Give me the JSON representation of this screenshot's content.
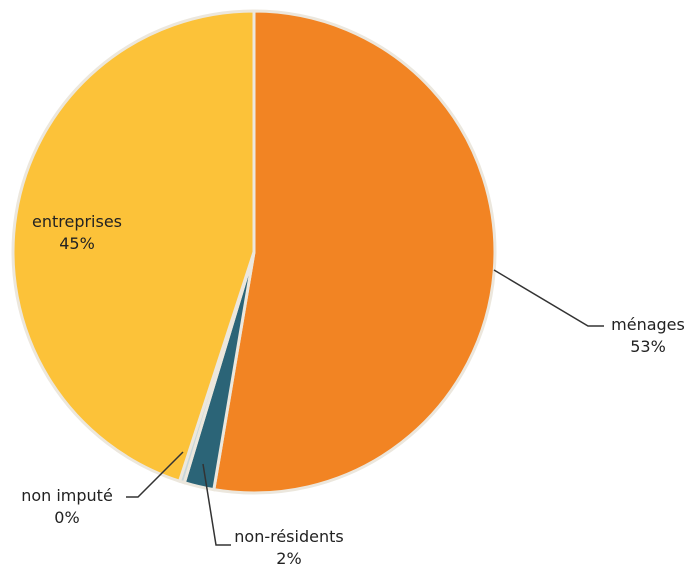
{
  "chart_data": {
    "type": "pie",
    "title": "",
    "categories": [
      "ménages",
      "non-résidents",
      "non imputé",
      "entreprises"
    ],
    "values": [
      53,
      2,
      0,
      45
    ],
    "percent_labels": [
      "53%",
      "2%",
      "0%",
      "45%"
    ],
    "colors": [
      "#f28423",
      "#2b6477",
      "#c8d6d9",
      "#fcc239"
    ],
    "start_angle_deg": 0,
    "direction": "clockwise",
    "legend": "none",
    "labels": [
      {
        "name": "ménages",
        "pct": "53%"
      },
      {
        "name": "non-résidents",
        "pct": "2%"
      },
      {
        "name": "non imputé",
        "pct": "0%"
      },
      {
        "name": "entreprises",
        "pct": "45%"
      }
    ]
  }
}
